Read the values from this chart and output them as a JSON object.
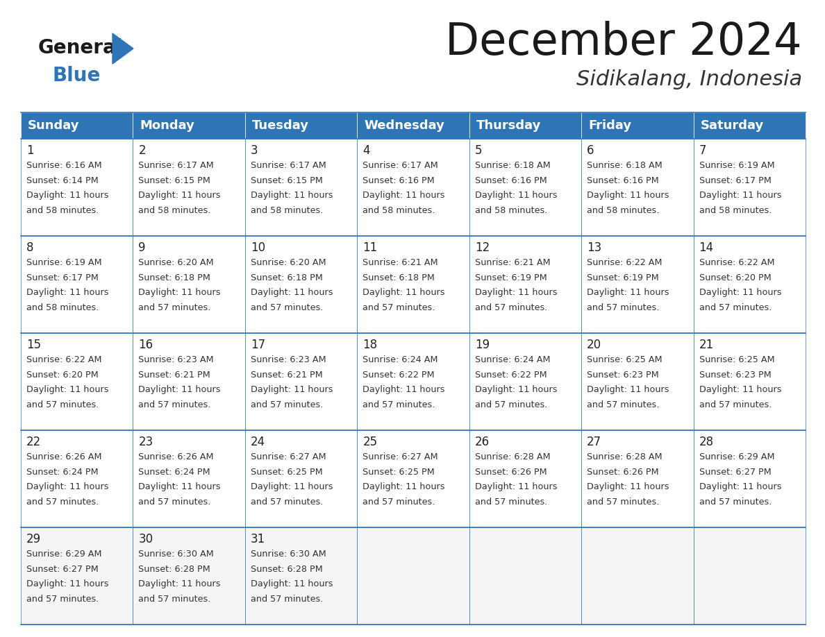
{
  "title": "December 2024",
  "subtitle": "Sidikalang, Indonesia",
  "header_color": "#2E75B6",
  "header_text_color": "#FFFFFF",
  "cell_bg_color": "#FFFFFF",
  "border_color": "#2E75B6",
  "days_of_week": [
    "Sunday",
    "Monday",
    "Tuesday",
    "Wednesday",
    "Thursday",
    "Friday",
    "Saturday"
  ],
  "weeks": [
    [
      {
        "day": 1,
        "sunrise": "6:16 AM",
        "sunset": "6:14 PM",
        "daylight": "11 hours and 58 minutes."
      },
      {
        "day": 2,
        "sunrise": "6:17 AM",
        "sunset": "6:15 PM",
        "daylight": "11 hours and 58 minutes."
      },
      {
        "day": 3,
        "sunrise": "6:17 AM",
        "sunset": "6:15 PM",
        "daylight": "11 hours and 58 minutes."
      },
      {
        "day": 4,
        "sunrise": "6:17 AM",
        "sunset": "6:16 PM",
        "daylight": "11 hours and 58 minutes."
      },
      {
        "day": 5,
        "sunrise": "6:18 AM",
        "sunset": "6:16 PM",
        "daylight": "11 hours and 58 minutes."
      },
      {
        "day": 6,
        "sunrise": "6:18 AM",
        "sunset": "6:16 PM",
        "daylight": "11 hours and 58 minutes."
      },
      {
        "day": 7,
        "sunrise": "6:19 AM",
        "sunset": "6:17 PM",
        "daylight": "11 hours and 58 minutes."
      }
    ],
    [
      {
        "day": 8,
        "sunrise": "6:19 AM",
        "sunset": "6:17 PM",
        "daylight": "11 hours and 58 minutes."
      },
      {
        "day": 9,
        "sunrise": "6:20 AM",
        "sunset": "6:18 PM",
        "daylight": "11 hours and 57 minutes."
      },
      {
        "day": 10,
        "sunrise": "6:20 AM",
        "sunset": "6:18 PM",
        "daylight": "11 hours and 57 minutes."
      },
      {
        "day": 11,
        "sunrise": "6:21 AM",
        "sunset": "6:18 PM",
        "daylight": "11 hours and 57 minutes."
      },
      {
        "day": 12,
        "sunrise": "6:21 AM",
        "sunset": "6:19 PM",
        "daylight": "11 hours and 57 minutes."
      },
      {
        "day": 13,
        "sunrise": "6:22 AM",
        "sunset": "6:19 PM",
        "daylight": "11 hours and 57 minutes."
      },
      {
        "day": 14,
        "sunrise": "6:22 AM",
        "sunset": "6:20 PM",
        "daylight": "11 hours and 57 minutes."
      }
    ],
    [
      {
        "day": 15,
        "sunrise": "6:22 AM",
        "sunset": "6:20 PM",
        "daylight": "11 hours and 57 minutes."
      },
      {
        "day": 16,
        "sunrise": "6:23 AM",
        "sunset": "6:21 PM",
        "daylight": "11 hours and 57 minutes."
      },
      {
        "day": 17,
        "sunrise": "6:23 AM",
        "sunset": "6:21 PM",
        "daylight": "11 hours and 57 minutes."
      },
      {
        "day": 18,
        "sunrise": "6:24 AM",
        "sunset": "6:22 PM",
        "daylight": "11 hours and 57 minutes."
      },
      {
        "day": 19,
        "sunrise": "6:24 AM",
        "sunset": "6:22 PM",
        "daylight": "11 hours and 57 minutes."
      },
      {
        "day": 20,
        "sunrise": "6:25 AM",
        "sunset": "6:23 PM",
        "daylight": "11 hours and 57 minutes."
      },
      {
        "day": 21,
        "sunrise": "6:25 AM",
        "sunset": "6:23 PM",
        "daylight": "11 hours and 57 minutes."
      }
    ],
    [
      {
        "day": 22,
        "sunrise": "6:26 AM",
        "sunset": "6:24 PM",
        "daylight": "11 hours and 57 minutes."
      },
      {
        "day": 23,
        "sunrise": "6:26 AM",
        "sunset": "6:24 PM",
        "daylight": "11 hours and 57 minutes."
      },
      {
        "day": 24,
        "sunrise": "6:27 AM",
        "sunset": "6:25 PM",
        "daylight": "11 hours and 57 minutes."
      },
      {
        "day": 25,
        "sunrise": "6:27 AM",
        "sunset": "6:25 PM",
        "daylight": "11 hours and 57 minutes."
      },
      {
        "day": 26,
        "sunrise": "6:28 AM",
        "sunset": "6:26 PM",
        "daylight": "11 hours and 57 minutes."
      },
      {
        "day": 27,
        "sunrise": "6:28 AM",
        "sunset": "6:26 PM",
        "daylight": "11 hours and 57 minutes."
      },
      {
        "day": 28,
        "sunrise": "6:29 AM",
        "sunset": "6:27 PM",
        "daylight": "11 hours and 57 minutes."
      }
    ],
    [
      {
        "day": 29,
        "sunrise": "6:29 AM",
        "sunset": "6:27 PM",
        "daylight": "11 hours and 57 minutes."
      },
      {
        "day": 30,
        "sunrise": "6:30 AM",
        "sunset": "6:28 PM",
        "daylight": "11 hours and 57 minutes."
      },
      {
        "day": 31,
        "sunrise": "6:30 AM",
        "sunset": "6:28 PM",
        "daylight": "11 hours and 57 minutes."
      },
      null,
      null,
      null,
      null
    ]
  ]
}
